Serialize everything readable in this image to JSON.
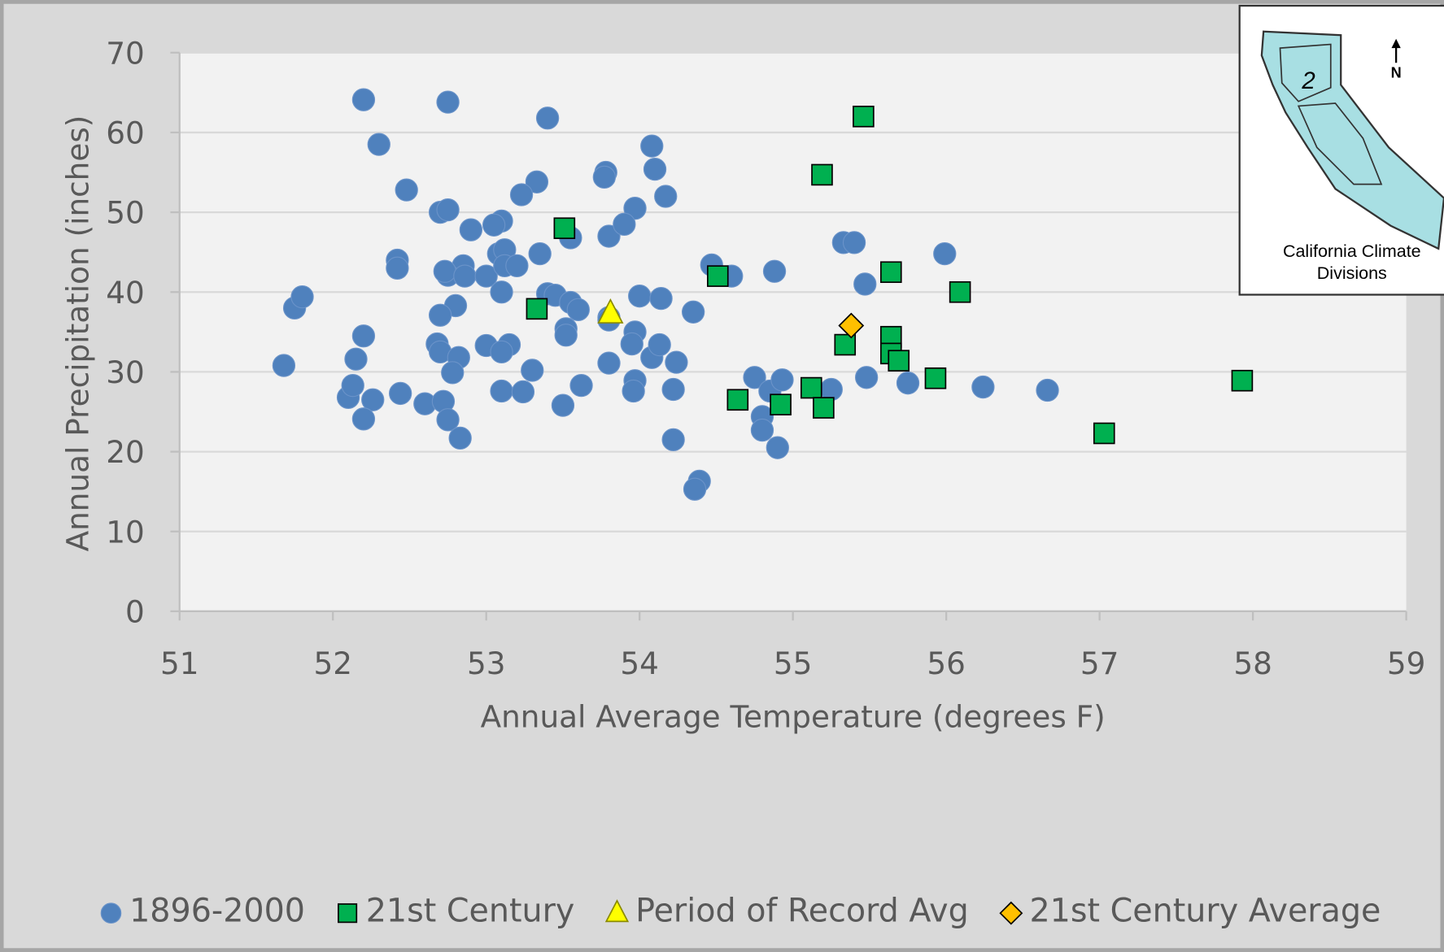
{
  "chart_data": {
    "type": "scatter",
    "xlabel": "Annual Average Temperature (degrees F)",
    "ylabel": "Annual Precipitation (inches)",
    "xlim": [
      51,
      59
    ],
    "ylim": [
      0,
      70
    ],
    "xticks": [
      51,
      52,
      53,
      54,
      55,
      56,
      57,
      58,
      59
    ],
    "yticks": [
      0,
      10,
      20,
      30,
      40,
      50,
      60,
      70
    ],
    "grid": true,
    "legend": "bottom",
    "series": [
      {
        "name": "1896-2000",
        "marker": "circle",
        "color": "#4f81bd",
        "x": [
          52.2,
          52.75,
          53.4,
          52.3,
          54.08,
          53.78,
          54.1,
          53.33,
          52.48,
          53.23,
          54.17,
          52.7,
          52.75,
          53.97,
          53.1,
          53.05,
          52.9,
          53.8,
          53.55,
          53.9,
          53.77,
          52.42,
          52.42,
          52.85,
          52.75,
          52.73,
          52.86,
          53.0,
          53.08,
          53.12,
          53.12,
          53.2,
          53.35,
          53.4,
          53.45,
          53.1,
          53.55,
          53.6,
          52.8,
          52.7,
          51.75,
          51.8,
          54.47,
          54.6,
          54.88,
          54.0,
          54.14,
          53.97,
          53.52,
          53.52,
          53.8,
          54.35,
          55.33,
          55.4,
          55.47,
          55.99,
          52.2,
          52.68,
          52.7,
          52.82,
          52.78,
          53.0,
          53.15,
          53.1,
          52.15,
          51.68,
          53.3,
          53.8,
          53.95,
          54.08,
          54.13,
          54.24,
          53.1,
          53.24,
          53.62,
          53.5,
          53.97,
          53.96,
          54.22,
          52.1,
          52.13,
          52.26,
          52.44,
          52.6,
          52.72,
          52.75,
          52.2,
          52.83,
          54.22,
          54.39,
          54.36,
          54.75,
          54.8,
          54.8,
          54.85,
          54.93,
          54.9,
          55.25,
          55.48,
          55.75,
          56.24,
          56.66,
          53.8
        ],
        "y": [
          64.1,
          63.8,
          61.8,
          58.5,
          58.3,
          55,
          55.4,
          53.8,
          52.8,
          52.2,
          52,
          50,
          50.3,
          50.5,
          48.9,
          48.4,
          47.8,
          47,
          46.8,
          48.5,
          54.4,
          44,
          43,
          43.3,
          42.1,
          42.6,
          42,
          42,
          44.8,
          45.3,
          43.3,
          43.3,
          44.8,
          39.8,
          39.6,
          40,
          38.7,
          37.8,
          38.3,
          37.1,
          38,
          39.4,
          43.4,
          42,
          42.6,
          39.5,
          39.2,
          35,
          35.4,
          34.6,
          36.8,
          37.5,
          46.2,
          46.2,
          41,
          44.8,
          34.5,
          33.5,
          32.5,
          31.8,
          29.9,
          33.3,
          33.4,
          32.5,
          31.6,
          30.8,
          30.2,
          31.1,
          33.5,
          31.8,
          33.4,
          31.2,
          27.6,
          27.5,
          28.3,
          25.8,
          28.9,
          27.6,
          27.8,
          26.8,
          28.3,
          26.5,
          27.3,
          26,
          26.3,
          24,
          24.1,
          21.7,
          21.5,
          16.3,
          15.3,
          29.3,
          24.4,
          22.7,
          27.6,
          29,
          20.5,
          27.8,
          29.3,
          28.6,
          28.1,
          27.7,
          36.5
        ]
      },
      {
        "name": "21st Century",
        "marker": "square",
        "color": "#00b050",
        "x": [
          53.51,
          53.33,
          54.51,
          55.46,
          55.19,
          55.64,
          56.09,
          55.34,
          55.64,
          55.64,
          55.69,
          55.93,
          55.12,
          55.2,
          54.92,
          54.64,
          57.03,
          57.93
        ],
        "y": [
          48,
          37.9,
          42,
          62,
          54.7,
          42.5,
          40,
          33.4,
          34.4,
          32.3,
          31.4,
          29.2,
          28,
          25.5,
          25.9,
          26.5,
          22.3,
          28.9
        ]
      },
      {
        "name": "Period of Record Avg",
        "marker": "triangle",
        "color": "#ffff00",
        "x": [
          53.81
        ],
        "y": [
          37.3
        ]
      },
      {
        "name": "21st Century Average",
        "marker": "diamond",
        "color": "#ffc000",
        "x": [
          55.38
        ],
        "y": [
          35.8
        ]
      }
    ]
  },
  "inset": {
    "division": "2",
    "north": "N",
    "caption": [
      "California Climate",
      "Divisions"
    ]
  }
}
